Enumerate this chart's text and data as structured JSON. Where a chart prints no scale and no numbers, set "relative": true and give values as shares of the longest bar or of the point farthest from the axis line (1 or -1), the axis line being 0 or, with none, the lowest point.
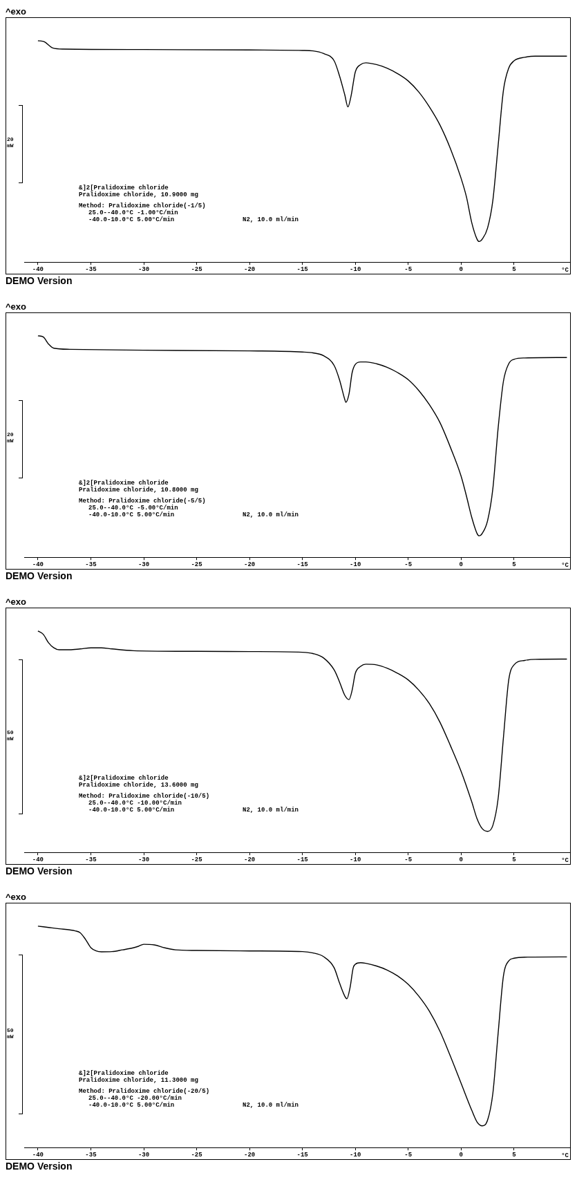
{
  "chart_data": [
    {
      "type": "line",
      "title": "^exo",
      "ylabel": "20 mW",
      "xlabel": "°C",
      "relative": true,
      "grid": false,
      "legend": false,
      "marker": "none",
      "color": "#000000",
      "xlim": [
        -41.3,
        10.3
      ],
      "xticks": [
        -40,
        -35,
        -30,
        -25,
        -20,
        -15,
        -10,
        -5,
        0,
        5
      ],
      "x": [
        -40,
        -39.4,
        -38.6,
        -37.6,
        -30,
        -20,
        -15,
        -14,
        -13,
        -12,
        -11.5,
        -11,
        -10.7,
        -10.4,
        -10,
        -9.5,
        -9,
        -8,
        -7,
        -6,
        -5,
        -4,
        -3,
        -2,
        -1,
        0,
        0.5,
        1,
        1.5,
        1.7,
        2,
        2.5,
        3,
        3.5,
        4,
        4.5,
        5,
        6,
        7,
        10
      ],
      "values": [
        1.0,
        0.995,
        0.967,
        0.962,
        0.96,
        0.958,
        0.956,
        0.954,
        0.942,
        0.909,
        0.842,
        0.756,
        0.701,
        0.751,
        0.859,
        0.892,
        0.9,
        0.892,
        0.876,
        0.851,
        0.818,
        0.768,
        0.701,
        0.619,
        0.511,
        0.378,
        0.295,
        0.179,
        0.104,
        0.093,
        0.104,
        0.154,
        0.279,
        0.527,
        0.776,
        0.876,
        0.909,
        0.925,
        0.93,
        0.93
      ],
      "annotations": [
        "&]2[Pralidoxime chloride",
        "Pralidoxime chloride, 10.9000 mg",
        "Method: Pralidoxime chloride(-1/5)",
        "25.0--40.0°C -1.00°C/min",
        "-40.0-10.0°C 5.00°C/min",
        "N2, 10.0 ml/min",
        "DEMO Version"
      ]
    },
    {
      "type": "line",
      "title": "^exo",
      "ylabel": "20 mW",
      "xlabel": "°C",
      "relative": true,
      "grid": false,
      "legend": false,
      "marker": "none",
      "color": "#000000",
      "xlim": [
        -41.3,
        10.3
      ],
      "xticks": [
        -40,
        -35,
        -30,
        -25,
        -20,
        -15,
        -10,
        -5,
        0,
        5
      ],
      "x": [
        -40,
        -39.5,
        -39,
        -38.5,
        -37,
        -30,
        -20,
        -15,
        -14,
        -13,
        -12,
        -11.5,
        -11,
        -10.9,
        -10.6,
        -10.3,
        -10,
        -9.5,
        -9,
        -8,
        -7,
        -6,
        -5,
        -4,
        -3,
        -2,
        -1,
        0,
        0.5,
        1,
        1.5,
        1.7,
        2,
        2.5,
        3,
        3.5,
        4,
        4.5,
        5,
        6,
        10
      ],
      "values": [
        1.0,
        0.995,
        0.963,
        0.944,
        0.939,
        0.935,
        0.932,
        0.927,
        0.923,
        0.91,
        0.866,
        0.802,
        0.713,
        0.7,
        0.737,
        0.834,
        0.871,
        0.882,
        0.882,
        0.874,
        0.858,
        0.834,
        0.802,
        0.753,
        0.689,
        0.608,
        0.495,
        0.366,
        0.277,
        0.181,
        0.108,
        0.097,
        0.108,
        0.165,
        0.31,
        0.584,
        0.795,
        0.874,
        0.894,
        0.9,
        0.902
      ],
      "annotations": [
        "&]2[Pralidoxime chloride",
        "Pralidoxime chloride, 10.8000 mg",
        "Method: Pralidoxime chloride(-5/5)",
        "25.0--40.0°C -5.00°C/min",
        "-40.0-10.0°C 5.00°C/min",
        "N2, 10.0 ml/min",
        "DEMO Version"
      ]
    },
    {
      "type": "line",
      "title": "^exo",
      "ylabel": "50 mW",
      "xlabel": "°C",
      "relative": true,
      "grid": false,
      "legend": false,
      "marker": "none",
      "color": "#000000",
      "xlim": [
        -41.3,
        10.3
      ],
      "xticks": [
        -40,
        -35,
        -30,
        -25,
        -20,
        -15,
        -10,
        -5,
        0,
        5
      ],
      "x": [
        -40,
        -39.5,
        -39,
        -38.5,
        -38,
        -37,
        -36,
        -35,
        -34,
        -33,
        -31,
        -25,
        -20,
        -15,
        -14,
        -13,
        -12,
        -11.5,
        -11,
        -10.6,
        -10.3,
        -10,
        -9.5,
        -9,
        -8,
        -7,
        -6,
        -5,
        -4,
        -3,
        -2,
        -1,
        0,
        1,
        1.5,
        2,
        2.5,
        3,
        3.5,
        4,
        4.5,
        5,
        6,
        7,
        10
      ],
      "values": [
        1.0,
        0.985,
        0.947,
        0.924,
        0.915,
        0.915,
        0.919,
        0.924,
        0.924,
        0.919,
        0.911,
        0.908,
        0.907,
        0.904,
        0.898,
        0.878,
        0.824,
        0.771,
        0.71,
        0.69,
        0.733,
        0.809,
        0.84,
        0.85,
        0.847,
        0.832,
        0.809,
        0.779,
        0.733,
        0.672,
        0.588,
        0.481,
        0.366,
        0.229,
        0.153,
        0.107,
        0.095,
        0.122,
        0.244,
        0.519,
        0.779,
        0.847,
        0.867,
        0.872,
        0.873
      ],
      "annotations": [
        "&]2[Pralidoxime chloride",
        "Pralidoxime chloride, 13.6000 mg",
        "Method: Pralidoxime chloride(-10/5)",
        "25.0--40.0°C -10.00°C/min",
        "-40.0-10.0°C 5.00°C/min",
        "N2, 10.0 ml/min",
        "DEMO Version"
      ]
    },
    {
      "type": "line",
      "title": "^exo",
      "ylabel": "50 mW",
      "xlabel": "°C",
      "relative": true,
      "grid": false,
      "legend": false,
      "marker": "none",
      "color": "#000000",
      "xlim": [
        -41.3,
        10.3
      ],
      "xticks": [
        -40,
        -35,
        -30,
        -25,
        -20,
        -15,
        -10,
        -5,
        0,
        5
      ],
      "x": [
        -40,
        -39,
        -38,
        -37,
        -36.5,
        -36,
        -35.5,
        -35,
        -34.5,
        -34,
        -33,
        -32,
        -31,
        -30.5,
        -30,
        -29,
        -28,
        -27,
        -25,
        -20,
        -15,
        -14,
        -13,
        -12,
        -11.5,
        -11,
        -10.8,
        -10.5,
        -10.2,
        -10,
        -9.5,
        -9,
        -8,
        -7,
        -6,
        -5,
        -4,
        -3,
        -2,
        -1,
        0,
        1,
        1.5,
        2,
        2.5,
        3,
        3.5,
        4,
        4.5,
        5,
        6,
        10
      ],
      "values": [
        1.0,
        0.994,
        0.988,
        0.983,
        0.979,
        0.97,
        0.94,
        0.903,
        0.888,
        0.884,
        0.885,
        0.893,
        0.902,
        0.909,
        0.918,
        0.915,
        0.902,
        0.893,
        0.89,
        0.888,
        0.885,
        0.879,
        0.862,
        0.812,
        0.744,
        0.684,
        0.672,
        0.722,
        0.812,
        0.828,
        0.835,
        0.832,
        0.82,
        0.802,
        0.775,
        0.737,
        0.684,
        0.616,
        0.525,
        0.411,
        0.29,
        0.169,
        0.116,
        0.098,
        0.124,
        0.245,
        0.517,
        0.775,
        0.843,
        0.855,
        0.86,
        0.861
      ],
      "annotations": [
        "&]2[Pralidoxime chloride",
        "Pralidoxime chloride, 11.3000 mg",
        "Method: Pralidoxime chloride(-20/5)",
        "25.0--40.0°C -20.00°C/min",
        "-40.0-10.0°C 5.00°C/min",
        "N2, 10.0 ml/min",
        "DEMO Version"
      ]
    }
  ]
}
